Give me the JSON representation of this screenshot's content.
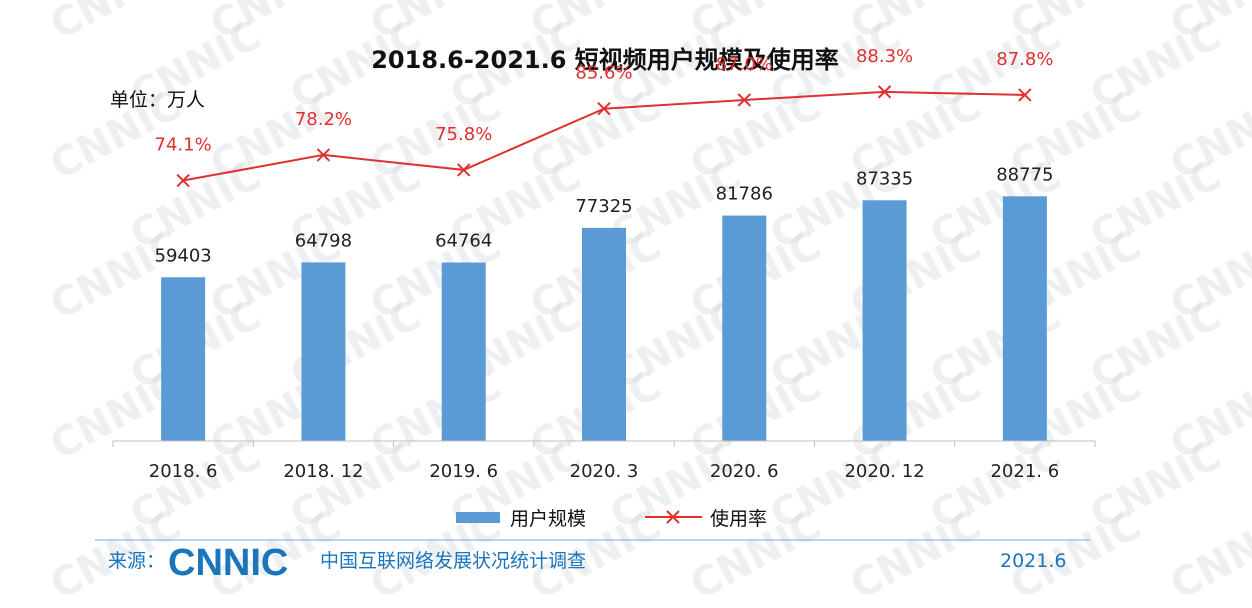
{
  "chart_data": {
    "type": "bar+line",
    "title": "2018.6-2021.6 短视频用户规模及使用率",
    "unit_label": "单位：万人",
    "categories": [
      "2018. 6",
      "2018. 12",
      "2019. 6",
      "2020. 3",
      "2020. 6",
      "2020. 12",
      "2021. 6"
    ],
    "series": [
      {
        "name": "用户规模",
        "type": "bar",
        "values": [
          59403,
          64798,
          64764,
          77325,
          81786,
          87335,
          88775
        ],
        "color": "#5b9bd5"
      },
      {
        "name": "使用率",
        "type": "line",
        "values": [
          74.1,
          78.2,
          75.8,
          85.6,
          87.0,
          88.3,
          87.8
        ],
        "labels": [
          "74.1%",
          "78.2%",
          "75.8%",
          "85.6%",
          "87.0%",
          "88.3%",
          "87.8%"
        ],
        "color": "#e03030",
        "marker": "x"
      }
    ],
    "bar_ylim": [
      0,
      160000
    ],
    "line_ylim": [
      30,
      95
    ],
    "legend_position": "bottom",
    "grid": false
  },
  "source": {
    "label": "来源：",
    "logo_text": "CNNIC",
    "org": "中国互联网络发展状况统计调查",
    "date": "2021.6"
  },
  "watermark": "CNNIC"
}
